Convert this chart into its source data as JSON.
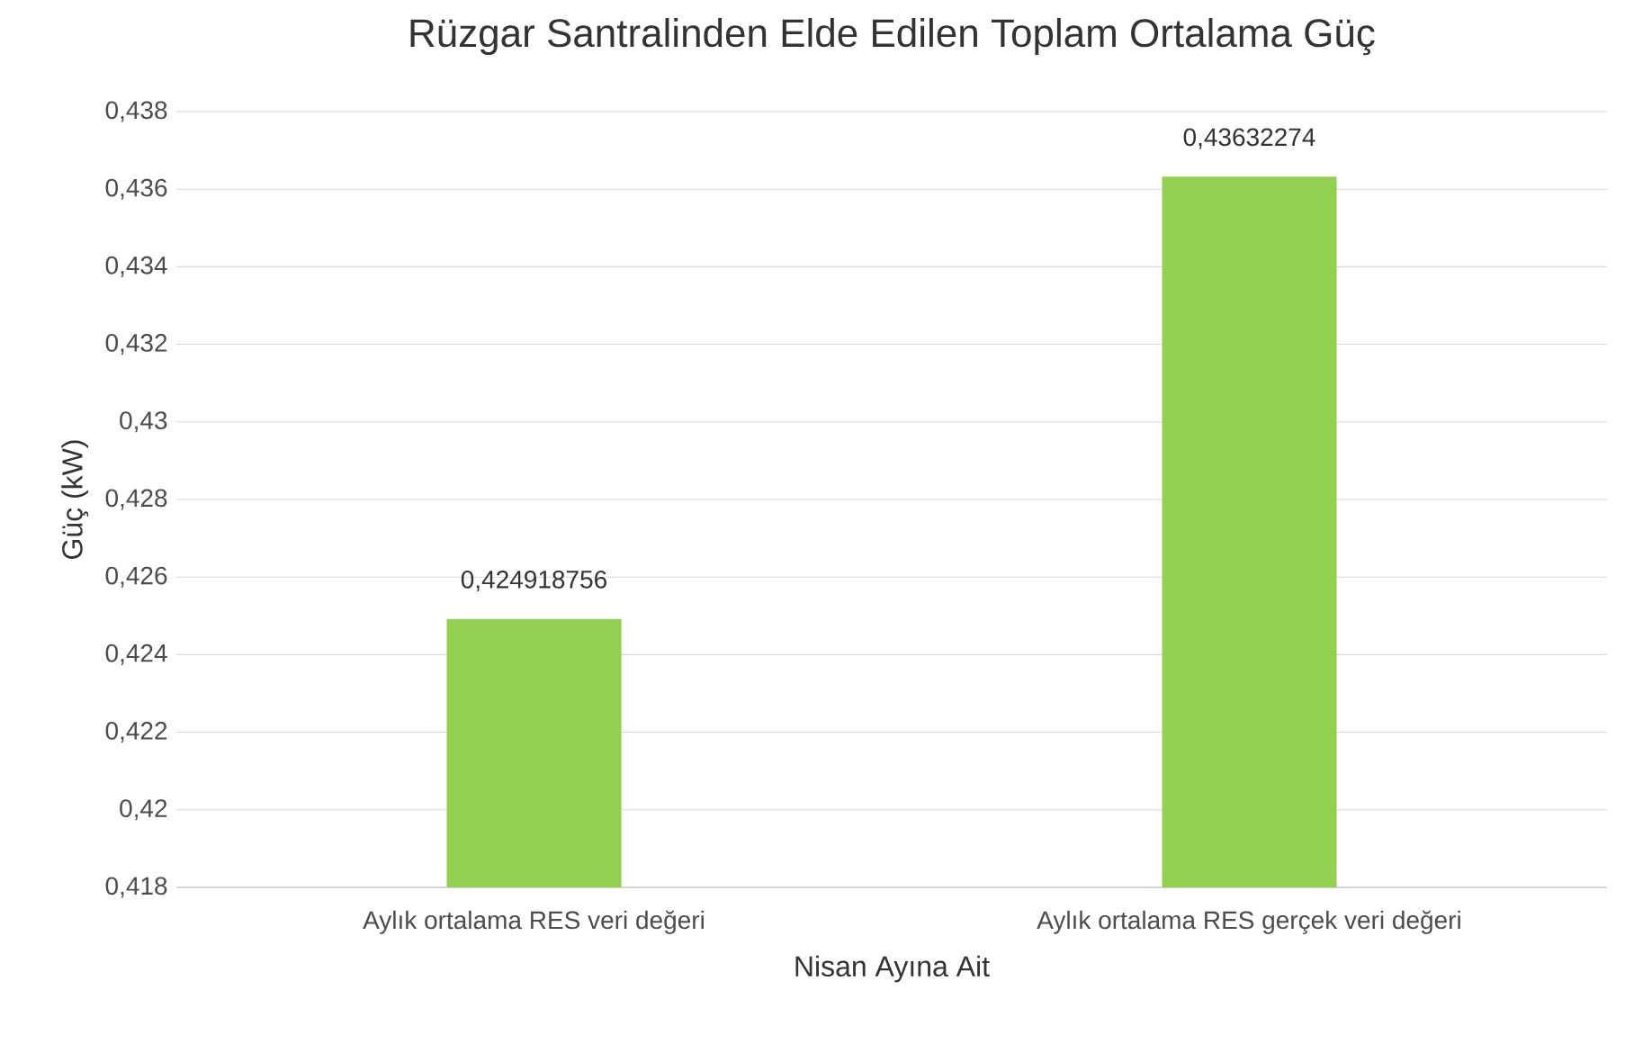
{
  "chart_data": {
    "type": "bar",
    "title": "Rüzgar Santralinden Elde Edilen Toplam Ortalama Güç",
    "xlabel": "Nisan Ayına Ait",
    "ylabel": "Güç (kW)",
    "categories": [
      "Aylık ortalama RES veri değeri",
      "Aylık ortalama RES gerçek veri değeri"
    ],
    "values": [
      0.424918756,
      0.43632274
    ],
    "value_labels": [
      "0,424918756",
      "0,43632274"
    ],
    "color": "#92d050",
    "ylim": [
      0.418,
      0.438
    ],
    "yticks": [
      {
        "value": 0.418,
        "label": "0,418"
      },
      {
        "value": 0.42,
        "label": "0,42"
      },
      {
        "value": 0.422,
        "label": "0,422"
      },
      {
        "value": 0.424,
        "label": "0,424"
      },
      {
        "value": 0.426,
        "label": "0,426"
      },
      {
        "value": 0.428,
        "label": "0,428"
      },
      {
        "value": 0.43,
        "label": "0,43"
      },
      {
        "value": 0.432,
        "label": "0,432"
      },
      {
        "value": 0.434,
        "label": "0,434"
      },
      {
        "value": 0.436,
        "label": "0,436"
      },
      {
        "value": 0.438,
        "label": "0,438"
      }
    ],
    "grid": "y"
  }
}
